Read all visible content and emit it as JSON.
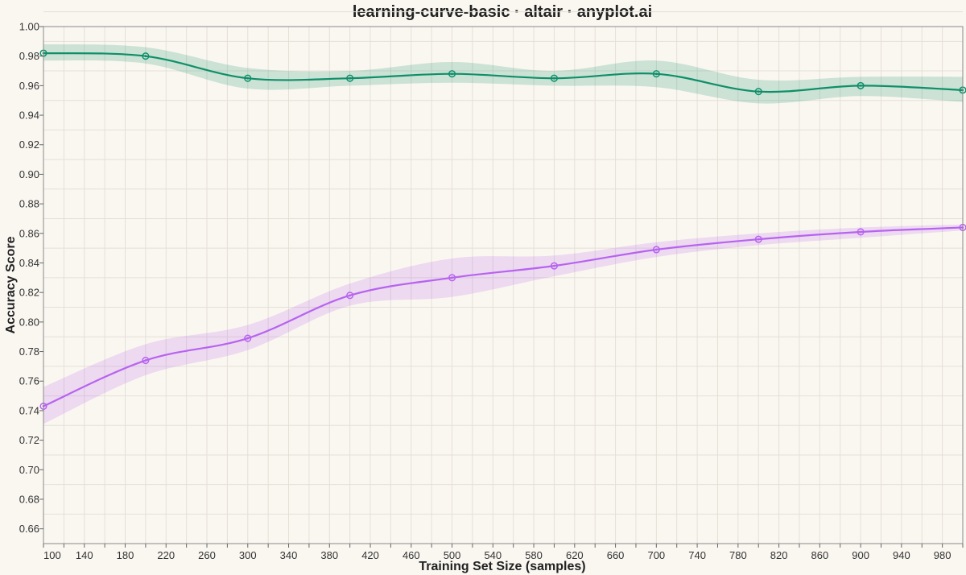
{
  "chart_data": {
    "type": "line",
    "title": "learning-curve-basic · altair · anyplot.ai",
    "xlabel": "Training Set Size (samples)",
    "ylabel": "Accuracy Score",
    "xlim": [
      100,
      1000
    ],
    "ylim": [
      0.65,
      1.0
    ],
    "x_ticks": [
      100,
      140,
      180,
      220,
      260,
      300,
      340,
      380,
      420,
      460,
      500,
      540,
      580,
      620,
      660,
      700,
      740,
      780,
      820,
      860,
      900,
      940,
      980
    ],
    "y_ticks": [
      0.66,
      0.68,
      0.7,
      0.72,
      0.74,
      0.76,
      0.78,
      0.8,
      0.82,
      0.84,
      0.86,
      0.88,
      0.9,
      0.92,
      0.94,
      0.96,
      0.98,
      1.0
    ],
    "y_tick_format": 2,
    "grid": true,
    "legend": "none",
    "series": [
      {
        "color": "#0E8F6A",
        "band_color": "#0E8F6A",
        "x": [
          100,
          200,
          300,
          400,
          500,
          600,
          700,
          800,
          900,
          1000
        ],
        "values": [
          0.982,
          0.98,
          0.965,
          0.965,
          0.968,
          0.965,
          0.968,
          0.956,
          0.96,
          0.957
        ],
        "upper": [
          0.988,
          0.986,
          0.972,
          0.97,
          0.976,
          0.97,
          0.977,
          0.964,
          0.966,
          0.966
        ],
        "lower": [
          0.977,
          0.975,
          0.958,
          0.96,
          0.962,
          0.96,
          0.959,
          0.948,
          0.953,
          0.949
        ]
      },
      {
        "color": "#B763F0",
        "band_color": "#B763F0",
        "x": [
          100,
          200,
          300,
          400,
          500,
          600,
          700,
          800,
          900,
          1000
        ],
        "values": [
          0.743,
          0.774,
          0.789,
          0.818,
          0.83,
          0.838,
          0.849,
          0.856,
          0.861,
          0.864
        ],
        "upper": [
          0.756,
          0.785,
          0.798,
          0.826,
          0.843,
          0.845,
          0.854,
          0.86,
          0.864,
          0.866
        ],
        "lower": [
          0.731,
          0.764,
          0.781,
          0.811,
          0.817,
          0.831,
          0.844,
          0.852,
          0.857,
          0.862
        ]
      }
    ]
  }
}
